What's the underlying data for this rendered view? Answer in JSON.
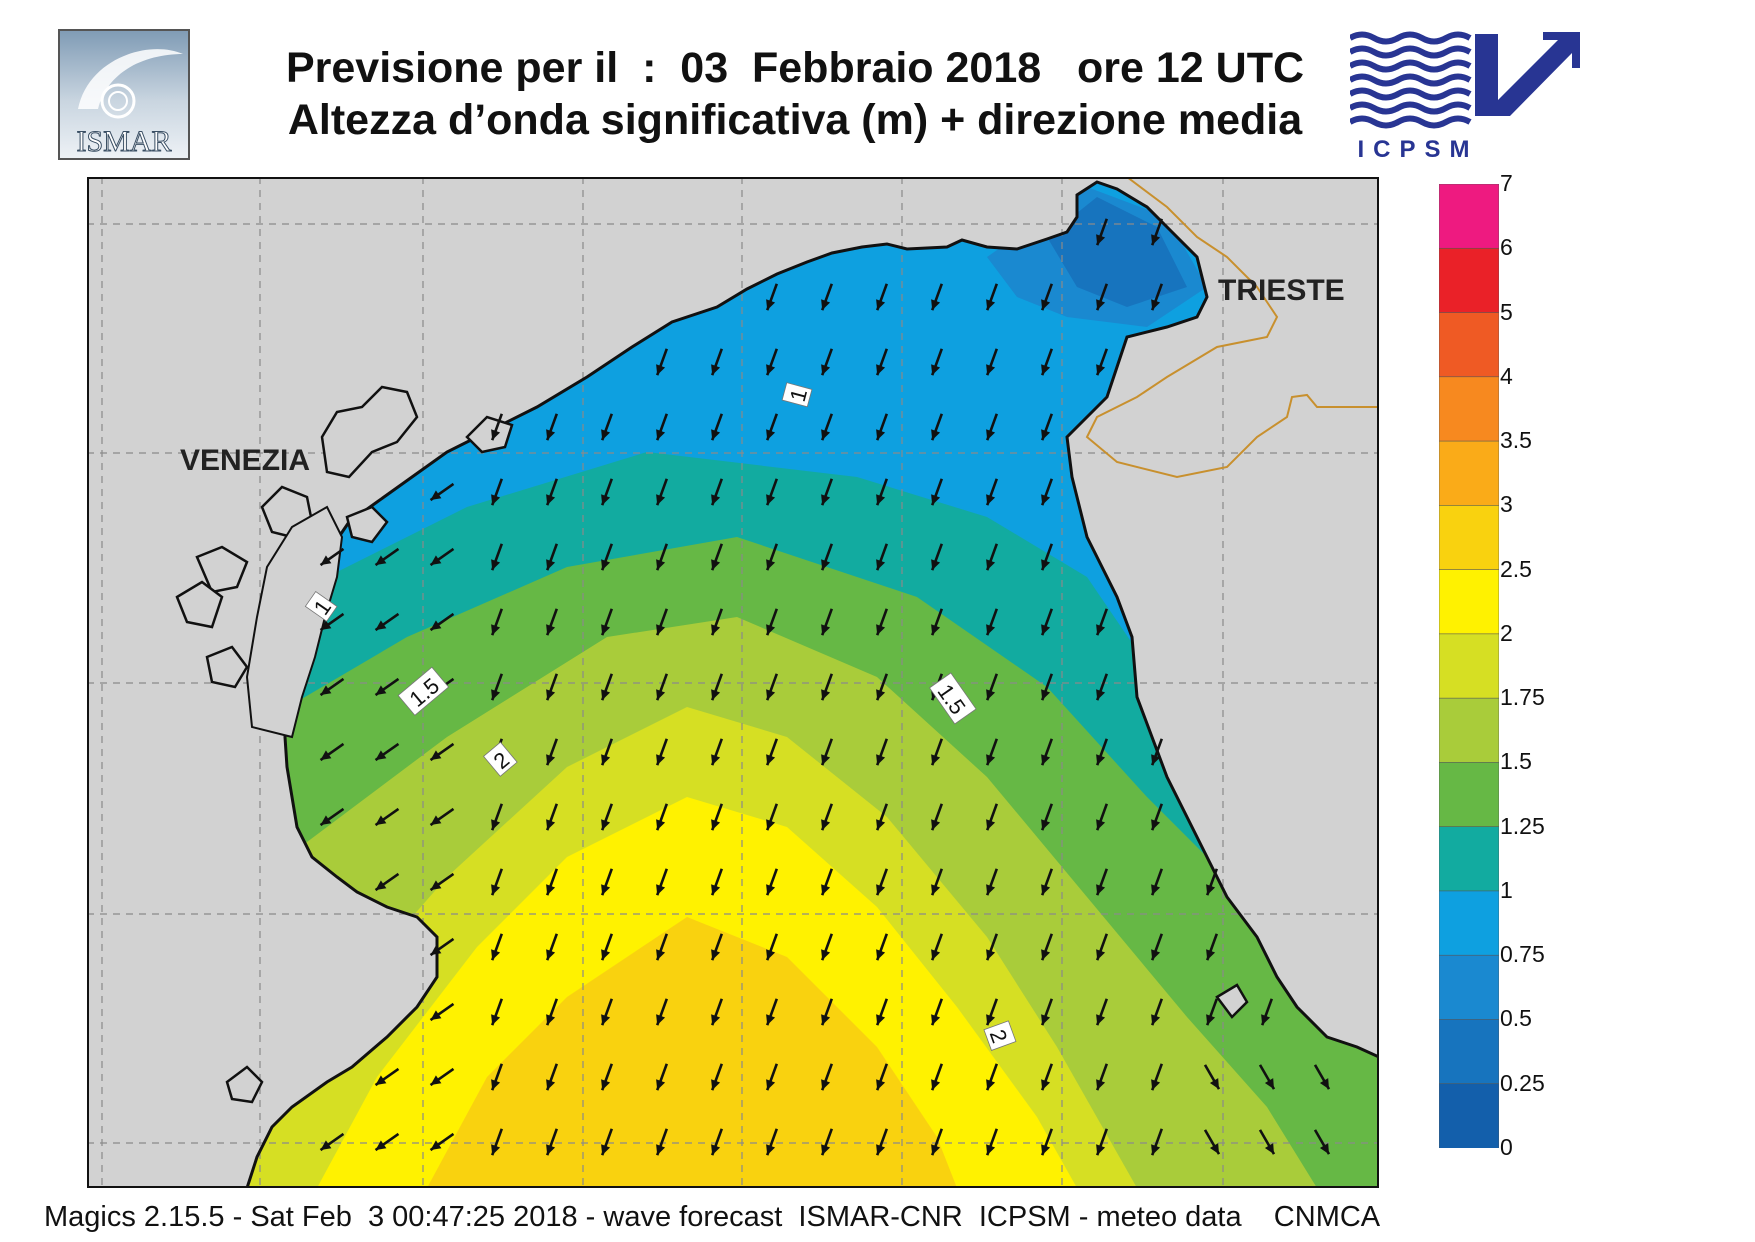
{
  "header": {
    "title_line1": "Previsione per il  :  03  Febbraio 2018   ore 12 UTC",
    "title_line2": "Altezza d’onda significativa (m) + direzione media"
  },
  "logos": {
    "left_text": "ISMAR",
    "right_text": "ICPSM",
    "left_icon": "ismar-logo-icon",
    "right_icon": "icpsm-wave-arrow-icon"
  },
  "map": {
    "cities": [
      {
        "name": "VENEZIA"
      },
      {
        "name": "TRIESTE"
      }
    ],
    "contour_labels": [
      "1",
      "1",
      "1.5",
      "1.5",
      "2",
      "2"
    ],
    "arrow_direction": "towards south-southwest",
    "colors": {
      "land": "#d2d2d2",
      "grid": "#8a8a8a",
      "coast": "#111111",
      "border": "#c8902e"
    }
  },
  "legend": {
    "levels": [
      "7",
      "6",
      "5",
      "4",
      "3.5",
      "3",
      "2.5",
      "2",
      "1.75",
      "1.5",
      "1.25",
      "1",
      "0.75",
      "0.5",
      "0.25",
      "0"
    ],
    "colors": [
      "#ee1a80",
      "#ea2128",
      "#ef5a24",
      "#f7891f",
      "#faab18",
      "#f9d20f",
      "#fff200",
      "#d6df23",
      "#a9cc3a",
      "#66b845",
      "#12aba0",
      "#0ea0e0",
      "#1a89d0",
      "#1774be",
      "#135fab"
    ]
  },
  "footer": {
    "text": "Magics 2.15.5 - Sat Feb  3 00:47:25 2018 - wave forecast  ISMAR-CNR  ICPSM - meteo data    CNMCA"
  }
}
